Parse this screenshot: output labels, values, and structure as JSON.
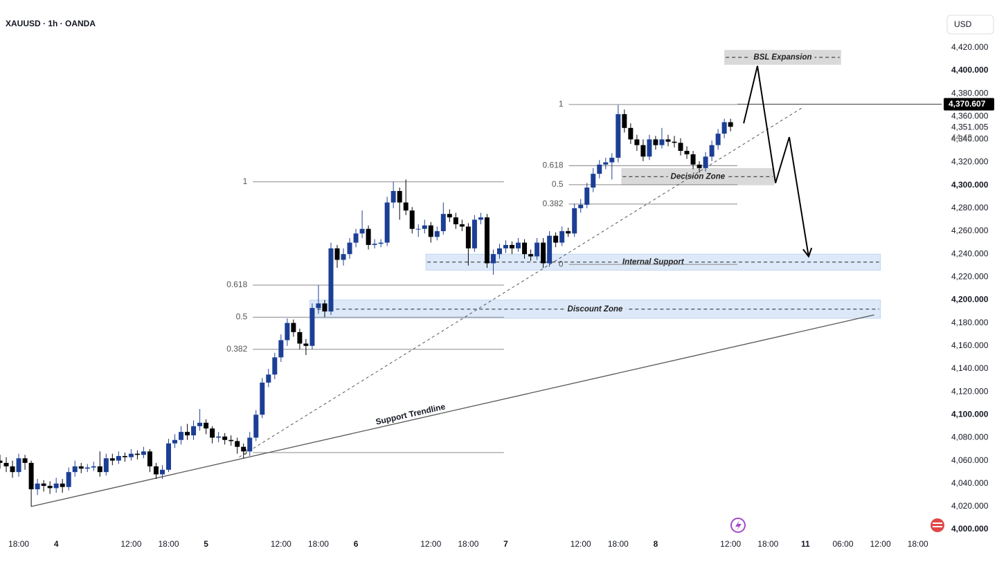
{
  "header": {
    "symbol": "XAUUSD · 1h · OANDA",
    "currency": "USD"
  },
  "chart_data": {
    "type": "candlestick",
    "x": [
      -3,
      -2,
      -1,
      0,
      1,
      2,
      3,
      4,
      5,
      6,
      7,
      8,
      9,
      10,
      11,
      12,
      13,
      14,
      15,
      16,
      17,
      18,
      19,
      20,
      21,
      22,
      23,
      24,
      25,
      26,
      27,
      28,
      29,
      30,
      31,
      32,
      33,
      34,
      35,
      36,
      37,
      38,
      39,
      40,
      41,
      42,
      43,
      44,
      45,
      46,
      47,
      48,
      49,
      50,
      51,
      52,
      53,
      54,
      55,
      56,
      57,
      58,
      59,
      60,
      61,
      62,
      63,
      64,
      65,
      66,
      67,
      68,
      69,
      70,
      71,
      72,
      73,
      74,
      75,
      76,
      77,
      78,
      79,
      80,
      81,
      82,
      83,
      84,
      85,
      86,
      87,
      88,
      89,
      90,
      91,
      92,
      93,
      94,
      95,
      96,
      97,
      98,
      99,
      100,
      101,
      102,
      103,
      104,
      105,
      106,
      107,
      108,
      109,
      110,
      111,
      112,
      113,
      114
    ],
    "open": [
      4060,
      4058,
      4055,
      4050,
      4062,
      4058,
      4035,
      4040,
      4038,
      4036,
      4040,
      4037,
      4050,
      4055,
      4053,
      4054,
      4055,
      4050,
      4062,
      4060,
      4064,
      4063,
      4066,
      4065,
      4068,
      4055,
      4048,
      4052,
      4075,
      4078,
      4085,
      4082,
      4090,
      4093,
      4088,
      4080,
      4081,
      4078,
      4077,
      4072,
      4068,
      4080,
      4100,
      4128,
      4135,
      4150,
      4165,
      4180,
      4172,
      4162,
      4160,
      4193,
      4197,
      4190,
      4245,
      4235,
      4240,
      4250,
      4258,
      4262,
      4248,
      4249,
      4250,
      4285,
      4295,
      4285,
      4278,
      4262,
      4262,
      4265,
      4255,
      4260,
      4275,
      4272,
      4266,
      4264,
      4245,
      4270,
      4272,
      4232,
      4240,
      4245,
      4248,
      4245,
      4250,
      4240,
      4238,
      4250,
      4232,
      4256,
      4250,
      4260,
      4258,
      4280,
      4283,
      4298,
      4310,
      4318,
      4320,
      4324,
      4362,
      4350,
      4340,
      4335,
      4325,
      4340,
      4335,
      4340,
      4338,
      4337,
      4330,
      4327,
      4318,
      4315,
      4325,
      4335,
      4345,
      4355
    ],
    "high": [
      4065,
      4063,
      4060,
      4066,
      4065,
      4060,
      4044,
      4043,
      4042,
      4045,
      4044,
      4054,
      4060,
      4058,
      4057,
      4059,
      4068,
      4066,
      4066,
      4068,
      4067,
      4070,
      4069,
      4072,
      4070,
      4058,
      4056,
      4079,
      4083,
      4090,
      4092,
      4095,
      4105,
      4096,
      4090,
      4085,
      4084,
      4082,
      4080,
      4075,
      4085,
      4104,
      4132,
      4140,
      4154,
      4170,
      4184,
      4183,
      4175,
      4166,
      4197,
      4213,
      4200,
      4250,
      4248,
      4245,
      4254,
      4262,
      4278,
      4265,
      4253,
      4253,
      4290,
      4303,
      4298,
      4305,
      4281,
      4266,
      4270,
      4268,
      4264,
      4285,
      4279,
      4276,
      4270,
      4267,
      4274,
      4276,
      4275,
      4244,
      4249,
      4252,
      4251,
      4254,
      4253,
      4244,
      4254,
      4254,
      4260,
      4259,
      4264,
      4263,
      4284,
      4288,
      4302,
      4315,
      4322,
      4324,
      4328,
      4370,
      4366,
      4354,
      4344,
      4340,
      4344,
      4343,
      4350,
      4344,
      4343,
      4341,
      4334,
      4330,
      4321,
      4329,
      4339,
      4349,
      4358,
      4358
    ],
    "low": [
      4053,
      4050,
      4045,
      4046,
      4052,
      4020,
      4030,
      4033,
      4031,
      4032,
      4032,
      4034,
      4046,
      4049,
      4050,
      4051,
      4046,
      4047,
      4056,
      4057,
      4059,
      4060,
      4061,
      4062,
      4050,
      4044,
      4044,
      4050,
      4071,
      4074,
      4078,
      4078,
      4086,
      4083,
      4075,
      4076,
      4074,
      4073,
      4066,
      4062,
      4064,
      4077,
      4097,
      4124,
      4131,
      4146,
      4160,
      4168,
      4157,
      4152,
      4157,
      4188,
      4185,
      4187,
      4228,
      4230,
      4236,
      4246,
      4254,
      4244,
      4245,
      4246,
      4247,
      4280,
      4270,
      4274,
      4258,
      4255,
      4258,
      4250,
      4252,
      4257,
      4268,
      4262,
      4260,
      4230,
      4242,
      4266,
      4228,
      4222,
      4236,
      4241,
      4240,
      4242,
      4236,
      4234,
      4235,
      4228,
      4229,
      4246,
      4247,
      4255,
      4255,
      4276,
      4280,
      4294,
      4306,
      4314,
      4305,
      4320,
      4346,
      4336,
      4330,
      4321,
      4322,
      4331,
      4332,
      4334,
      4333,
      4326,
      4323,
      4314,
      4311,
      4312,
      4321,
      4331,
      4341,
      4347
    ],
    "close": [
      4058,
      4055,
      4050,
      4062,
      4058,
      4035,
      4040,
      4038,
      4036,
      4040,
      4037,
      4050,
      4055,
      4053,
      4054,
      4055,
      4050,
      4062,
      4060,
      4064,
      4063,
      4066,
      4065,
      4068,
      4055,
      4048,
      4052,
      4075,
      4078,
      4085,
      4082,
      4090,
      4093,
      4088,
      4080,
      4081,
      4078,
      4077,
      4072,
      4068,
      4080,
      4100,
      4128,
      4135,
      4150,
      4165,
      4180,
      4172,
      4162,
      4160,
      4193,
      4197,
      4190,
      4245,
      4235,
      4240,
      4250,
      4258,
      4262,
      4248,
      4249,
      4250,
      4285,
      4295,
      4285,
      4278,
      4262,
      4262,
      4265,
      4255,
      4260,
      4275,
      4272,
      4266,
      4264,
      4245,
      4270,
      4272,
      4232,
      4240,
      4245,
      4248,
      4245,
      4250,
      4240,
      4238,
      4250,
      4232,
      4256,
      4250,
      4260,
      4258,
      4280,
      4283,
      4298,
      4310,
      4318,
      4320,
      4324,
      4362,
      4350,
      4340,
      4335,
      4325,
      4340,
      4335,
      4340,
      4338,
      4337,
      4330,
      4327,
      4318,
      4315,
      4325,
      4335,
      4345,
      4355,
      4351
    ],
    "up_color": "#1c3f95",
    "down_color": "#000000",
    "xlim": [
      -3,
      147.8
    ],
    "ylim": [
      3994,
      4461.5
    ],
    "grid": false,
    "yticks": [
      {
        "value": 4000,
        "label": "4,000.000"
      },
      {
        "value": 4020,
        "label": "4,020.000"
      },
      {
        "value": 4040,
        "label": "4,040.000"
      },
      {
        "value": 4060,
        "label": "4,060.000"
      },
      {
        "value": 4080,
        "label": "4,080.000"
      },
      {
        "value": 4100,
        "label": "4,100.000"
      },
      {
        "value": 4120,
        "label": "4,120.000"
      },
      {
        "value": 4140,
        "label": "4,140.000"
      },
      {
        "value": 4160,
        "label": "4,160.000"
      },
      {
        "value": 4180,
        "label": "4,180.000"
      },
      {
        "value": 4200,
        "label": "4,200.000"
      },
      {
        "value": 4220,
        "label": "4,220.000"
      },
      {
        "value": 4240,
        "label": "4,240.000"
      },
      {
        "value": 4260,
        "label": "4,260.000"
      },
      {
        "value": 4280,
        "label": "4,280.000"
      },
      {
        "value": 4300,
        "label": "4,300.000"
      },
      {
        "value": 4320,
        "label": "4,320.000"
      },
      {
        "value": 4340,
        "label": "4,340.000"
      },
      {
        "value": 4360,
        "label": "4,360.000"
      },
      {
        "value": 4380,
        "label": "4,380.000"
      },
      {
        "value": 4400,
        "label": "4,400.000"
      },
      {
        "value": 4420,
        "label": "4,420.000"
      }
    ],
    "xticks": [
      {
        "value": 0,
        "label": "18:00"
      },
      {
        "value": 6,
        "label": "4"
      },
      {
        "value": 18,
        "label": "12:00"
      },
      {
        "value": 24,
        "label": "18:00"
      },
      {
        "value": 30,
        "label": "5"
      },
      {
        "value": 42,
        "label": "12:00"
      },
      {
        "value": 48,
        "label": "18:00"
      },
      {
        "value": 54,
        "label": "6"
      },
      {
        "value": 66,
        "label": "12:00"
      },
      {
        "value": 72,
        "label": "18:00"
      },
      {
        "value": 78,
        "label": "7"
      },
      {
        "value": 90,
        "label": "12:00"
      },
      {
        "value": 96,
        "label": "18:00"
      },
      {
        "value": 102,
        "label": "8"
      },
      {
        "value": 114,
        "label": "12:00"
      },
      {
        "value": 120,
        "label": "18:00"
      },
      {
        "value": 126,
        "label": "11"
      },
      {
        "value": 132,
        "label": "06:00"
      },
      {
        "value": 138,
        "label": "12:00"
      },
      {
        "value": 144,
        "label": "18:00"
      }
    ],
    "price_line": {
      "value": 4370.607,
      "label": "4,370.607"
    },
    "last_price": {
      "value": 4351.005,
      "label": "4,351.005",
      "countdown": "44:48"
    },
    "fibs": [
      {
        "x": [
          37.5,
          77.7
        ],
        "levels": [
          {
            "ratio": 1,
            "price": 4303
          },
          {
            "ratio": 0.618,
            "price": 4213
          },
          {
            "ratio": 0.5,
            "price": 4185
          },
          {
            "ratio": 0.382,
            "price": 4157
          },
          {
            "ratio": 0,
            "price": 4067
          }
        ]
      },
      {
        "x": [
          88.1,
          115.1
        ],
        "levels": [
          {
            "ratio": 1,
            "price": 4370.4
          },
          {
            "ratio": 0.618,
            "price": 4317
          },
          {
            "ratio": 0.5,
            "price": 4300.5
          },
          {
            "ratio": 0.382,
            "price": 4283.6
          },
          {
            "ratio": 0,
            "price": 4231
          }
        ]
      }
    ],
    "zones": [
      {
        "label": "BSL Expansion",
        "x": [
          113.0,
          131.7
        ],
        "low": 4405,
        "high": 4418,
        "color": "#d9d9d9"
      },
      {
        "label": "Decision Zone",
        "x": [
          96.5,
          121.0
        ],
        "low": 4300,
        "high": 4315,
        "color": "#d9d9d9"
      },
      {
        "label": "Internal Support",
        "x": [
          65.2,
          138.0
        ],
        "low": 4226,
        "high": 4240,
        "color": "#dde9f8"
      },
      {
        "label": "Discount Zone",
        "x": [
          46.6,
          138.0
        ],
        "low": 4184,
        "high": 4200,
        "color": "#dde9f8"
      }
    ],
    "trendlines": [
      {
        "label": "Support Trendline",
        "x": [
          2,
          137
        ],
        "price": [
          4020,
          4187
        ],
        "style": "solid"
      },
      {
        "x": [
          35.3,
          125.6
        ],
        "price": [
          4063,
          4368
        ],
        "style": "dashed"
      }
    ],
    "projection": {
      "x": [
        116.1,
        118.3,
        121.2,
        123.4,
        126.5
      ],
      "price": [
        4354,
        4404,
        4302,
        4342,
        4238
      ]
    }
  }
}
